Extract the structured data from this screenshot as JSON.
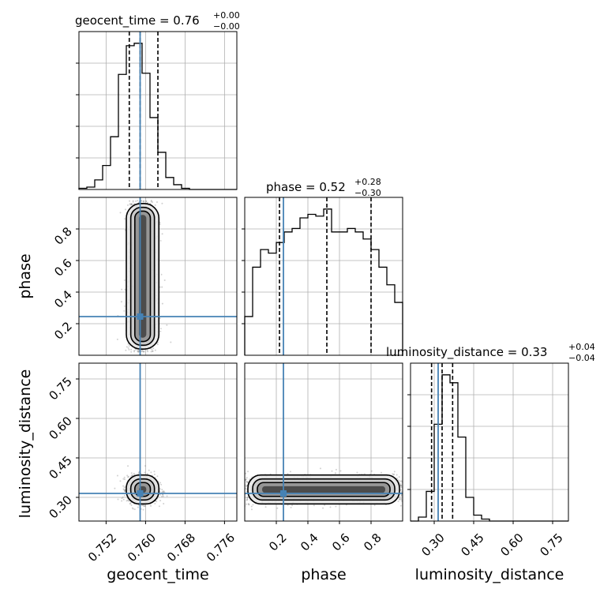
{
  "chart_data": {
    "type": "corner",
    "parameters": [
      "geocent_time",
      "phase",
      "luminosity_distance"
    ],
    "truth": {
      "geocent_time": 0.7589,
      "phase": 0.245,
      "luminosity_distance": 0.315
    },
    "titles": {
      "geocent_time": {
        "name": "geocent_time",
        "median": "0.76",
        "plus": "+0.00",
        "minus": "−0.00"
      },
      "phase": {
        "name": "phase",
        "median": "0.52",
        "plus": "+0.28",
        "minus": "−0.30"
      },
      "luminosity_distance": {
        "name": "luminosity_distance",
        "median": "0.33",
        "plus": "+0.04",
        "minus": "−0.04"
      }
    },
    "axes": {
      "geocent_time": {
        "range": [
          0.7465,
          0.7785
        ],
        "ticks": [
          0.752,
          0.76,
          0.768,
          0.776
        ],
        "tick_labels": [
          "0.752",
          "0.760",
          "0.768",
          "0.776"
        ]
      },
      "phase": {
        "range": [
          0.0,
          1.0
        ],
        "ticks": [
          0.2,
          0.4,
          0.6,
          0.8
        ],
        "tick_labels": [
          "0.2",
          "0.4",
          "0.6",
          "0.8"
        ]
      },
      "luminosity_distance": {
        "range": [
          0.21,
          0.81
        ],
        "ticks": [
          0.3,
          0.45,
          0.6,
          0.75
        ],
        "tick_labels": [
          "0.30",
          "0.45",
          "0.60",
          "0.75"
        ]
      }
    },
    "histograms": {
      "geocent_time": {
        "edges_range": [
          0.7465,
          0.7785
        ],
        "counts": [
          1,
          2,
          8,
          20,
          44,
          96,
          120,
          122,
          97,
          60,
          31,
          10,
          4,
          1,
          0,
          0,
          0,
          0,
          0,
          0
        ]
      },
      "phase": {
        "edges_range": [
          0.0,
          1.0
        ],
        "counts": [
          22,
          50,
          60,
          58,
          64,
          70,
          72,
          78,
          80,
          79,
          83,
          70,
          70,
          72,
          70,
          66,
          60,
          50,
          40,
          30
        ]
      },
      "luminosity_distance": {
        "edges_range": [
          0.21,
          0.81
        ],
        "counts": [
          0,
          4,
          30,
          98,
          148,
          140,
          85,
          24,
          6,
          2,
          0,
          0,
          0,
          0,
          0,
          0,
          0,
          0,
          0,
          0
        ]
      }
    },
    "quantiles": {
      "geocent_time": [
        0.7567,
        0.7589,
        0.7625
      ],
      "phase": [
        0.22,
        0.52,
        0.8
      ],
      "luminosity_distance": [
        0.29,
        0.33,
        0.37
      ]
    },
    "samples_2d": {
      "phase_vs_geocent_time": {
        "x_mean": 0.7594,
        "x_sd": 0.0015,
        "y_min": 0.02,
        "y_max": 0.98
      },
      "luminosity_distance_vs_geocent_time": {
        "x_mean": 0.7594,
        "x_sd": 0.0015,
        "y_mean": 0.33,
        "y_sd": 0.025
      },
      "luminosity_distance_vs_phase": {
        "x_min": 0.0,
        "x_max": 1.0,
        "y_mean": 0.33,
        "y_sd": 0.025
      }
    },
    "grid": true
  }
}
